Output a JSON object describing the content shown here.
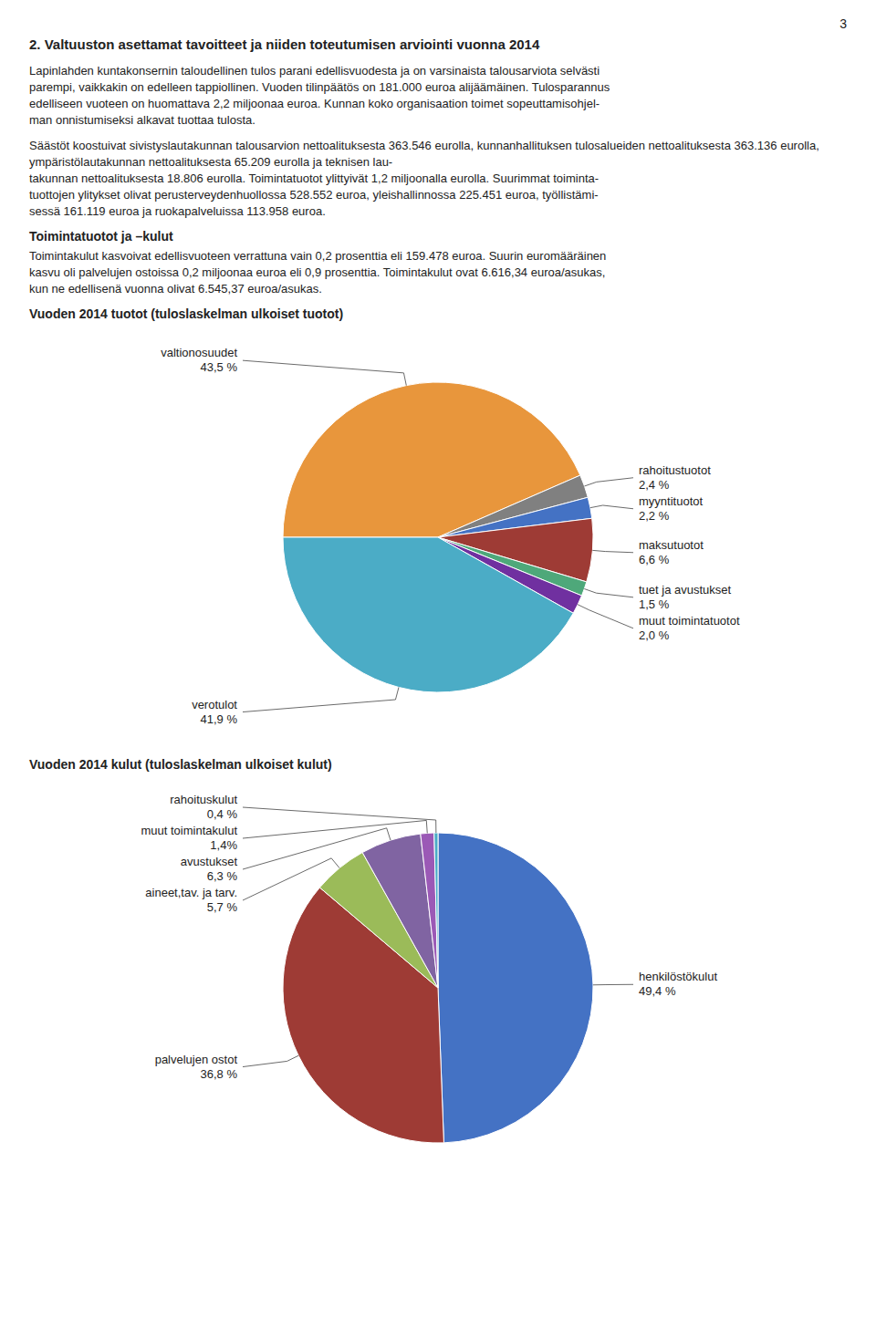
{
  "page_number": "3",
  "title": "2. Valtuuston asettamat tavoitteet ja niiden toteutumisen arviointi vuonna 2014",
  "text_blocks": [
    {
      "lines": [
        "Lapinlahden kuntakonsernin taloudellinen tulos parani edellisvuodesta ja on varsinaista talousarviota selvästi",
        "parempi, vaikkakin on edelleen tappiollinen. Vuoden tilinpäätös on 181.000 euroa alijäämäinen. Tulosparannus",
        "edelliseen vuoteen on huomattava 2,2 miljoonaa euroa. Kunnan koko organisaation toimet sopeuttamisohjel-",
        "man onnistumiseksi alkavat tuottaa tulosta."
      ]
    },
    {
      "lines": [
        "Säästöt koostuivat sivistyslautakunnan talousarvion nettoalituksesta 363.546 eurolla, kunnanhallituksen tulosalueiden nettoalituksesta 363.136 eurolla, ympäristölautakunnan nettoalituksesta 65.209 eurolla ja teknisen lau-",
        "takunnan nettoalituksesta 18.806 eurolla. Toimintatuotot ylittyivät 1,2 miljoonalla eurolla. Suurimmat toiminta-",
        "tuottojen ylitykset olivat perusterveydenhuollossa 528.552 euroa, yleishallinnossa 225.451 euroa, työllistämi-",
        "sessä 161.119 euroa ja ruokapalveluissa 113.958 euroa."
      ]
    },
    {
      "heading": "Toimintatuotot ja –kulut",
      "lines": [
        "Toimintakulut kasvoivat edellisvuoteen verrattuna vain 0,2 prosenttia eli 159.478 euroa. Suurin euromääräinen",
        "kasvu oli palvelujen ostoissa 0,2 miljoonaa euroa eli 0,9 prosenttia. Toimintakulut ovat 6.616,34 euroa/asukas,",
        "kun ne edellisenä vuonna olivat 6.545,37 euroa/asukas."
      ]
    }
  ],
  "chart_data": [
    {
      "type": "pie",
      "title": "Vuoden 2014 tuotot (tuloslaskelman ulkoiset tuotot)",
      "categories": [
        "valtionosuudet",
        "rahoitustuotot",
        "myyntituotot",
        "maksutuotot",
        "tuet ja avustukset",
        "muut toimintatuotot",
        "verotulot"
      ],
      "values": [
        43.5,
        2.4,
        2.2,
        6.6,
        1.5,
        2.0,
        41.9
      ],
      "value_labels": [
        "43,5 %",
        "2,4 %",
        "2,2 %",
        "6,6 %",
        "1,5 %",
        "2,0 %",
        "41,9 %"
      ],
      "colors": [
        "#E8963C",
        "#808080",
        "#4472C4",
        "#9E3B35",
        "#4EA87A",
        "#7030A0",
        "#4BACC6"
      ],
      "data_labels": true
    },
    {
      "type": "pie",
      "title": "Vuoden 2014 kulut (tuloslaskelman ulkoiset kulut)",
      "categories": [
        "henkilöstökulut",
        "palvelujen ostot",
        "aineet,tav. ja tarv.",
        "avustukset",
        "muut toimintakulut",
        "rahoituskulut"
      ],
      "values": [
        49.4,
        36.8,
        5.7,
        6.3,
        1.4,
        0.4
      ],
      "value_labels": [
        "49,4 %",
        "36,8 %",
        "5,7 %",
        "6,3 %",
        "1,4%",
        "0,4 %"
      ],
      "colors": [
        "#4472C4",
        "#9E3B35",
        "#9BBB59",
        "#8064A2",
        "#9B59B6",
        "#4BACC6"
      ],
      "data_labels": true
    }
  ]
}
